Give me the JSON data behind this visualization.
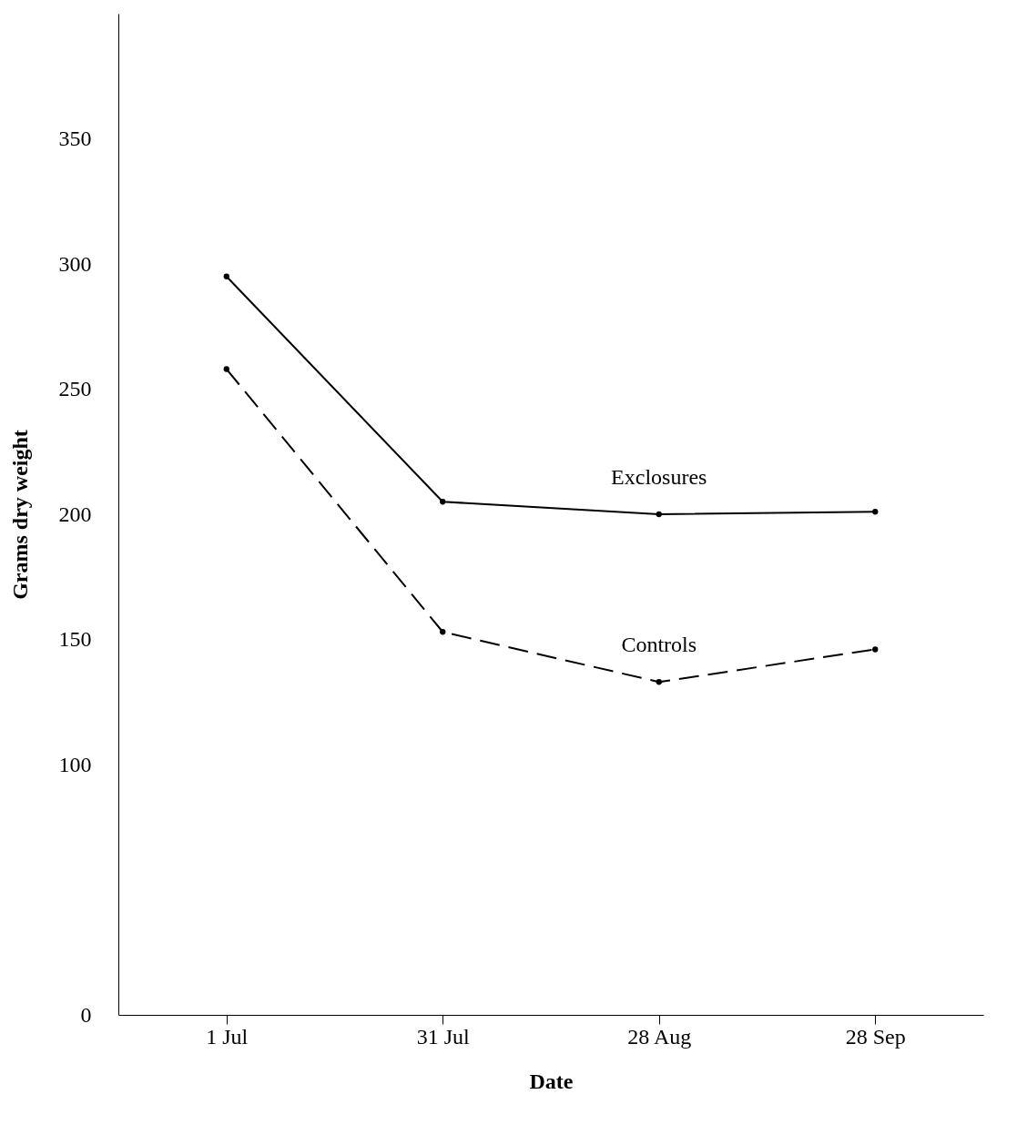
{
  "chart_data": {
    "type": "line",
    "xlabel": "Date",
    "ylabel": "Grams dry weight",
    "categories": [
      "1 Jul",
      "31 Jul",
      "28 Aug",
      "28 Sep"
    ],
    "series": [
      {
        "name": "Exclosures",
        "color": "#000000",
        "values": [
          295,
          205,
          200,
          201
        ],
        "line_style": "solid"
      },
      {
        "name": "Controls",
        "color": "#000000",
        "values": [
          258,
          153,
          133,
          146
        ],
        "line_style": "dashed"
      }
    ],
    "ylim": [
      0,
      400
    ],
    "yticks": [
      0,
      100,
      150,
      200,
      250,
      300,
      350
    ],
    "marker": "circle",
    "grid": false,
    "legend": false
  }
}
